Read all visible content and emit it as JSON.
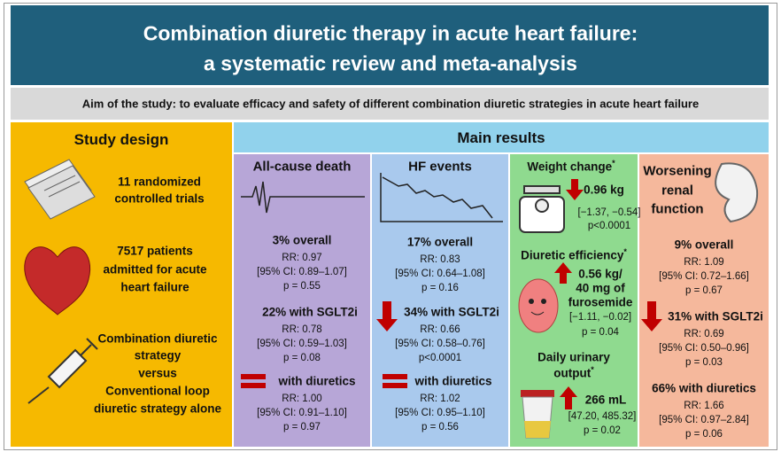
{
  "header": {
    "title": [
      "Combination diuretic therapy in acute heart failure:",
      "a systematic review and meta-analysis"
    ]
  },
  "aim": "Aim of the study: to evaluate efficacy and safety of different combination diuretic strategies in acute heart failure",
  "study_design": {
    "title": "Study design",
    "items": [
      [
        "11 randomized",
        "controlled trials"
      ],
      [
        "7517 patients",
        "admitted for acute",
        "heart failure"
      ],
      [
        "Combination diuretic",
        "strategy",
        "versus",
        "Conventional loop",
        "diuretic strategy alone"
      ]
    ]
  },
  "main_results": {
    "title": "Main results",
    "columns": [
      {
        "title": [
          "All-cause death"
        ],
        "results": [
          {
            "heading": [
              "3% overall"
            ],
            "lines": [
              "RR: 0.97",
              "[95% CI: 0.89–1.07]",
              "p = 0.55"
            ]
          },
          {
            "heading": [
              "22% with SGLT2i"
            ],
            "lines": [
              "RR: 0.78",
              "[95% CI: 0.59–1.03]",
              "p = 0.08"
            ]
          },
          {
            "heading": [
              "with diuretics"
            ],
            "lines": [
              "RR: 1.00",
              "[95% CI: 0.91–1.10]",
              "p = 0.97"
            ]
          }
        ]
      },
      {
        "title": [
          "HF events"
        ],
        "results": [
          {
            "heading": [
              "17% overall"
            ],
            "lines": [
              "RR: 0.83",
              "[95% CI: 0.64–1.08]",
              "p = 0.16"
            ]
          },
          {
            "heading": [
              "34% with SGLT2i"
            ],
            "lines": [
              "RR: 0.66",
              "[95% CI: 0.58–0.76]",
              "p<0.0001"
            ]
          },
          {
            "heading": [
              "with diuretics"
            ],
            "lines": [
              "RR: 1.02",
              "[95% CI: 0.95–1.10]",
              "p = 0.56"
            ]
          }
        ]
      },
      {
        "results": [
          {
            "title": [
              "Weight change"
            ],
            "marker": "*",
            "heading": [
              "0.96 kg"
            ],
            "lines": [
              "[−1.37, −0.54]",
              "p<0.0001"
            ]
          },
          {
            "title": [
              "Diuretic efficiency"
            ],
            "marker": "*",
            "heading": [
              "0.56 kg/",
              "40 mg of",
              "furosemide"
            ],
            "lines": [
              "[−1.11, −0.02]",
              "p = 0.04"
            ]
          },
          {
            "title": [
              "Daily urinary",
              "output"
            ],
            "marker": "*",
            "heading": [
              "266 mL"
            ],
            "lines": [
              "[47.20, 485.32]",
              "p = 0.02"
            ]
          }
        ]
      },
      {
        "title": [
          "Worsening",
          "renal",
          "function"
        ],
        "results": [
          {
            "heading": [
              "9% overall"
            ],
            "lines": [
              "RR: 1.09",
              "[95% CI: 0.72–1.66]",
              "p = 0.67"
            ]
          },
          {
            "heading": [
              "31% with SGLT2i"
            ],
            "lines": [
              "RR: 0.69",
              "[95% CI: 0.50–0.96]",
              "p = 0.03"
            ]
          },
          {
            "heading": [
              "66% with diuretics"
            ],
            "lines": [
              "RR: 1.66",
              "[95% CI: 0.97–2.84]",
              "p = 0.06"
            ]
          }
        ]
      }
    ]
  }
}
